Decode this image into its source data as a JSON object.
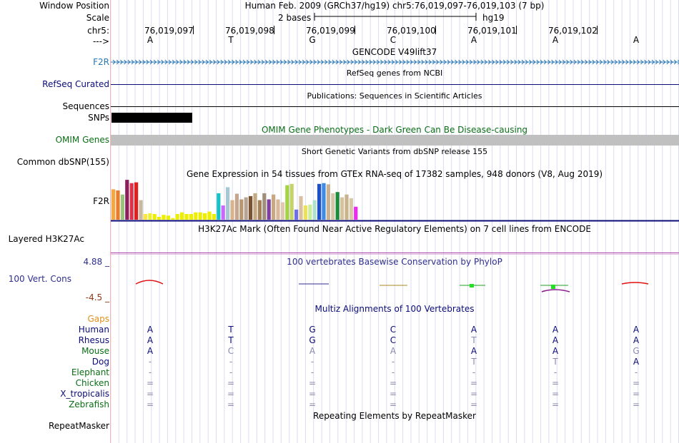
{
  "header": {
    "window_position_label": "Window Position",
    "window_position_value": "Human Feb. 2009 (GRCh37/hg19)   chr5:76,019,097-76,019,103 (7 bp)",
    "scale_label": "Scale",
    "scale_value": "2 bases",
    "scale_assembly": "hg19",
    "chrom_label": "chr5:",
    "strand_label": "--->",
    "coordinates": [
      "76,019,097",
      "76,019,098",
      "76,019,099",
      "76,019,100",
      "76,019,101",
      "76,019,102"
    ],
    "bases": [
      "A",
      "T",
      "G",
      "C",
      "A",
      "A",
      "A"
    ]
  },
  "tracks": {
    "gencode": {
      "title": "GENCODE V49lift37",
      "label": "F2R",
      "color": "#2a77b5"
    },
    "refseq": {
      "title": "RefSeq genes from NCBI",
      "label": "RefSeq Curated",
      "color": "#0c0c78"
    },
    "publications": {
      "title": "Publications: Sequences in Scientific Articles",
      "label": "Sequences"
    },
    "snps": {
      "label": "SNPs"
    },
    "omim": {
      "title": "OMIM Gene Phenotypes - Dark Green Can Be Disease-causing",
      "label": "OMIM Genes",
      "color": "#0b6e16"
    },
    "dbsnp": {
      "title": "Short Genetic Variants from dbSNP release 155",
      "label": "Common dbSNP(155)"
    },
    "gtex": {
      "title": "Gene Expression in 54 tissues from GTEx RNA-seq of 17382 samples, 948 donors (V8, Aug 2019)",
      "label": "F2R",
      "bars": [
        {
          "v": 0.75,
          "c": "#f5a742"
        },
        {
          "v": 0.72,
          "c": "#e87c2a"
        },
        {
          "v": 0.62,
          "c": "#99c47d"
        },
        {
          "v": 0.98,
          "c": "#8a1f5b"
        },
        {
          "v": 0.9,
          "c": "#e0314c"
        },
        {
          "v": 0.92,
          "c": "#e01f1f"
        },
        {
          "v": 0.48,
          "c": "#c8b89e"
        },
        {
          "v": 0.14,
          "c": "#ffe63c"
        },
        {
          "v": 0.16,
          "c": "#f0f032"
        },
        {
          "v": 0.14,
          "c": "#eeee00"
        },
        {
          "v": 0.07,
          "c": "#eeee00"
        },
        {
          "v": 0.12,
          "c": "#eeee00"
        },
        {
          "v": 0.1,
          "c": "#eeee00"
        },
        {
          "v": 0.04,
          "c": "#eeee00"
        },
        {
          "v": 0.14,
          "c": "#eeee00"
        },
        {
          "v": 0.18,
          "c": "#eeee00"
        },
        {
          "v": 0.14,
          "c": "#eeee00"
        },
        {
          "v": 0.14,
          "c": "#eeee00"
        },
        {
          "v": 0.18,
          "c": "#eeee00"
        },
        {
          "v": 0.18,
          "c": "#eeee00"
        },
        {
          "v": 0.16,
          "c": "#eeee00"
        },
        {
          "v": 0.2,
          "c": "#eeee00"
        },
        {
          "v": 0.14,
          "c": "#eeee00"
        },
        {
          "v": 0.65,
          "c": "#17c2c7"
        },
        {
          "v": 0.35,
          "c": "#cc66ff"
        },
        {
          "v": 0.8,
          "c": "#a6c8d4"
        },
        {
          "v": 0.48,
          "c": "#d9b38c"
        },
        {
          "v": 0.64,
          "c": "#c7a68f"
        },
        {
          "v": 0.5,
          "c": "#b89670"
        },
        {
          "v": 0.55,
          "c": "#b8a390"
        },
        {
          "v": 0.58,
          "c": "#7a5230"
        },
        {
          "v": 0.65,
          "c": "#c4aa82"
        },
        {
          "v": 0.48,
          "c": "#a38058"
        },
        {
          "v": 0.65,
          "c": "#a08f78"
        },
        {
          "v": 0.5,
          "c": "#7f3fa0"
        },
        {
          "v": 0.62,
          "c": "#c7a883"
        },
        {
          "v": 0.5,
          "c": "#d9b99c"
        },
        {
          "v": 0.43,
          "c": "#e0c9b0"
        },
        {
          "v": 0.85,
          "c": "#a4d343"
        },
        {
          "v": 0.88,
          "c": "#c4d468"
        },
        {
          "v": 0.25,
          "c": "#6e6ee8"
        },
        {
          "v": 0.58,
          "c": "#d9c0a0"
        },
        {
          "v": 0.35,
          "c": "#ede05a"
        },
        {
          "v": 0.37,
          "c": "#c8ee9c"
        },
        {
          "v": 0.48,
          "c": "#b0e0d0"
        },
        {
          "v": 0.88,
          "c": "#1f50c8"
        },
        {
          "v": 0.9,
          "c": "#3c8ce6"
        },
        {
          "v": 0.87,
          "c": "#c8b090"
        },
        {
          "v": 0.65,
          "c": "#d4c4a8"
        },
        {
          "v": 0.68,
          "c": "#1a8c3c"
        },
        {
          "v": 0.55,
          "c": "#d6c29c"
        },
        {
          "v": 0.62,
          "c": "#c8b48c"
        },
        {
          "v": 0.53,
          "c": "#d8c9a8"
        },
        {
          "v": 0.32,
          "c": "#ee2aee"
        }
      ]
    },
    "h3k27ac": {
      "title": "H3K27Ac Mark (Often Found Near Active Regulatory Elements) on 7 cell lines from ENCODE",
      "label": "Layered H3K27Ac"
    },
    "phylop": {
      "title": "100 vertebrates Basewise Conservation by PhyloP",
      "label": "100 Vert. Cons",
      "max": "4.88 _",
      "min": "-4.5 _",
      "color": "#2f2f8f"
    },
    "multiz": {
      "title": "Multiz Alignments of 100 Vertebrates",
      "gaps_label": "Gaps",
      "species": [
        {
          "name": "Human",
          "color": "#0c0c78",
          "bases": [
            "A",
            "T",
            "G",
            "C",
            "A",
            "A",
            "A"
          ],
          "dim": [
            0,
            0,
            0,
            0,
            0,
            0,
            0
          ]
        },
        {
          "name": "Rhesus",
          "color": "#0c0c78",
          "bases": [
            "A",
            "T",
            "G",
            "C",
            "T",
            "A",
            "A"
          ],
          "dim": [
            0,
            0,
            0,
            0,
            1,
            0,
            0
          ]
        },
        {
          "name": "Mouse",
          "color": "#0b6e16",
          "bases": [
            "A",
            "C",
            "A",
            "A",
            "A",
            "A",
            "G"
          ],
          "dim": [
            0,
            1,
            1,
            1,
            0,
            0,
            1
          ]
        },
        {
          "name": "Dog",
          "color": "#0c0c78",
          "bases": [
            "-",
            "-",
            "-",
            "-",
            "T",
            "T",
            "A"
          ],
          "dim": [
            1,
            1,
            1,
            1,
            1,
            1,
            0
          ]
        },
        {
          "name": "Elephant",
          "color": "#0b6e16",
          "bases": [
            "-",
            "-",
            "-",
            "-",
            "-",
            "-",
            "-"
          ],
          "dim": [
            1,
            1,
            1,
            1,
            1,
            1,
            1
          ]
        },
        {
          "name": "Chicken",
          "color": "#0b6e16",
          "bases": [
            "=",
            "=",
            "=",
            "=",
            "=",
            "=",
            "="
          ],
          "dim": [
            1,
            1,
            1,
            1,
            1,
            1,
            1
          ]
        },
        {
          "name": "X_tropicalis",
          "color": "#0c0c78",
          "bases": [
            "=",
            "=",
            "=",
            "=",
            "=",
            "=",
            "="
          ],
          "dim": [
            1,
            1,
            1,
            1,
            1,
            1,
            1
          ]
        },
        {
          "name": "Zebrafish",
          "color": "#0b6e16",
          "bases": [
            "=",
            "=",
            "=",
            "=",
            "=",
            "=",
            "="
          ],
          "dim": [
            1,
            1,
            1,
            1,
            1,
            1,
            1
          ]
        }
      ]
    },
    "repeatmasker": {
      "title": "Repeating Elements by RepeatMasker",
      "label": "RepeatMasker"
    }
  }
}
